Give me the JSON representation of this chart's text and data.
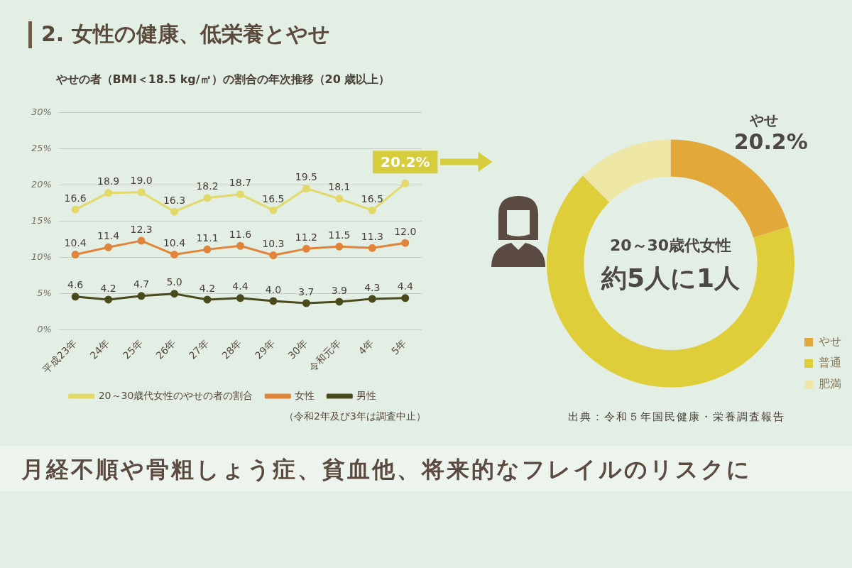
{
  "chart_data": [
    {
      "type": "line",
      "title": "2. 女性の健康、低栄養とやせ",
      "subtitle": "やせの者（BMI＜18.5 kg/㎡）の割合の年次推移（20 歳以上）",
      "categories": [
        "平成23年",
        "24年",
        "25年",
        "26年",
        "27年",
        "28年",
        "29年",
        "30年",
        "令和元年",
        "4年",
        "5年"
      ],
      "series": [
        {
          "name": "20～30歳代女性のやせの者の割合",
          "color": "#e3d96a",
          "values": [
            16.6,
            18.9,
            19.0,
            16.3,
            18.2,
            18.7,
            16.5,
            19.5,
            18.1,
            16.5,
            20.2
          ],
          "value_labels": [
            "16.6",
            "18.9",
            "19.0",
            "16.3",
            "18.2",
            "18.7",
            "16.5",
            "19.5",
            "18.1",
            "16.5",
            null
          ]
        },
        {
          "name": "女性",
          "color": "#e0843a",
          "values": [
            10.4,
            11.4,
            12.3,
            10.4,
            11.1,
            11.6,
            10.3,
            11.2,
            11.5,
            11.3,
            12.0
          ],
          "value_labels": [
            "10.4",
            "11.4",
            "12.3",
            "10.4",
            "11.1",
            "11.6",
            "10.3",
            "11.2",
            "11.5",
            "11.3",
            "12.0"
          ]
        },
        {
          "name": "男性",
          "color": "#4b4a1c",
          "values": [
            4.6,
            4.2,
            4.7,
            5.0,
            4.2,
            4.4,
            4.0,
            3.7,
            3.9,
            4.3,
            4.4
          ],
          "value_labels": [
            "4.6",
            "4.2",
            "4.7",
            "5.0",
            "4.2",
            "4.4",
            "4.0",
            "3.7",
            "3.9",
            "4.3",
            "4.4"
          ]
        }
      ],
      "ylim": [
        0,
        30
      ],
      "yticks": [
        {
          "value": 0,
          "label": "0%"
        },
        {
          "value": 5,
          "label": "5%"
        },
        {
          "value": 10,
          "label": "10%"
        },
        {
          "value": 15,
          "label": "15%"
        },
        {
          "value": 20,
          "label": "20%"
        },
        {
          "value": 25,
          "label": "25%"
        },
        {
          "value": 30,
          "label": "30%"
        }
      ],
      "grid": "y",
      "legend": "bottom",
      "marker": "circle",
      "annotations": [
        {
          "text": "20.2%",
          "x": "5年",
          "y": 20.2
        },
        "（令和2年及び3年は調査中止）",
        "月経不順や骨粗しょう症、貧血他、将来的なフレイルのリスクに"
      ]
    },
    {
      "type": "donut",
      "categories": [
        "やせ",
        "普通",
        "肥満"
      ],
      "values": [
        20.2,
        67.3,
        12.5
      ],
      "colors": [
        "#e2a83a",
        "#dfcd3a",
        "#eee7a6"
      ],
      "value_labels": [
        "20.2%",
        null,
        null
      ],
      "legend": "bottom right",
      "annotations": [
        "やせ",
        "20～30歳代女性",
        "約5人に1人",
        "出典：令和５年国民健康・栄養調査報告"
      ]
    }
  ]
}
